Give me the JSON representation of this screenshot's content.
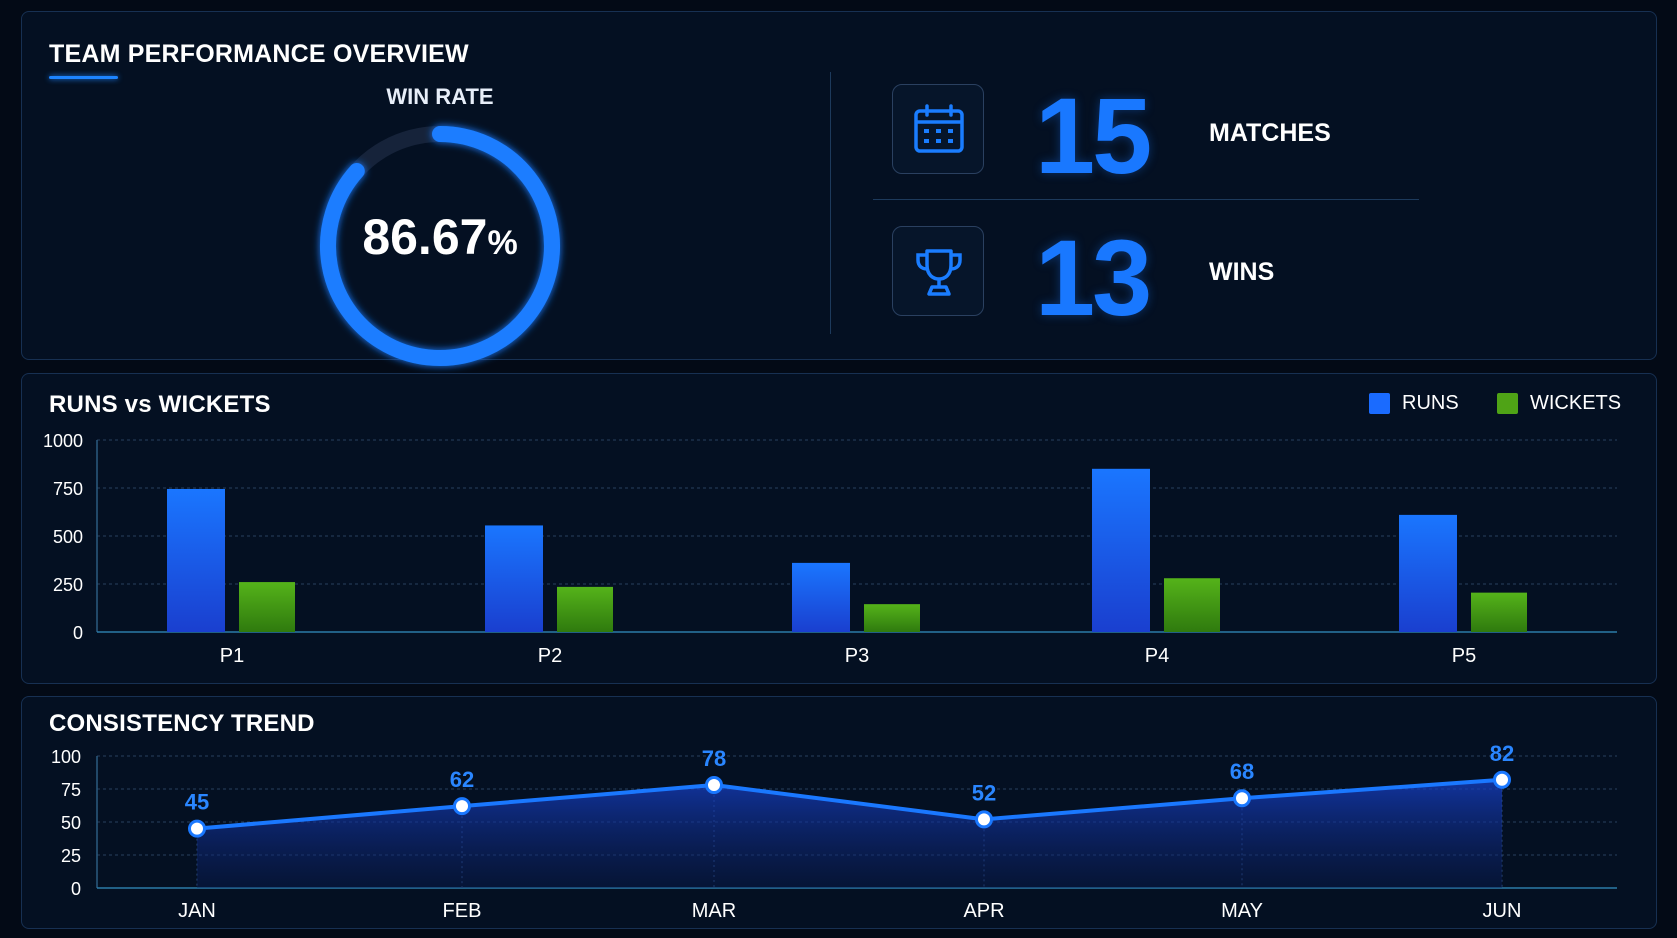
{
  "overview": {
    "title": "TEAM PERFORMANCE OVERVIEW",
    "win_rate_label": "WIN RATE",
    "win_rate_value": "86.67",
    "win_rate_unit": "%",
    "win_rate_fraction": 0.8667,
    "matches_value": "15",
    "matches_label": "MATCHES",
    "wins_value": "13",
    "wins_label": "WINS",
    "icons": {
      "matches": "calendar-icon",
      "wins": "trophy-icon"
    }
  },
  "colors": {
    "accent": "#1d84ff",
    "runs": "#1a6bff",
    "wickets": "#4fa316",
    "background": "#030a16"
  },
  "chart_data": [
    {
      "type": "bar",
      "title": "RUNS vs WICKETS",
      "categories": [
        "P1",
        "P2",
        "P3",
        "P4",
        "P5"
      ],
      "series": [
        {
          "name": "RUNS",
          "values": [
            745,
            555,
            360,
            850,
            610
          ]
        },
        {
          "name": "WICKETS",
          "values": [
            260,
            235,
            145,
            280,
            205
          ]
        }
      ],
      "ylim": [
        0,
        1000
      ],
      "yticks": [
        "0",
        "250",
        "500",
        "750",
        "1000"
      ],
      "legend": "top-right",
      "grid": true
    },
    {
      "type": "area",
      "title": "CONSISTENCY TREND",
      "categories": [
        "JAN",
        "FEB",
        "MAR",
        "APR",
        "MAY",
        "JUN"
      ],
      "series": [
        {
          "values": [
            45,
            62,
            78,
            52,
            68,
            82
          ],
          "labels": [
            "45",
            "62",
            "78",
            "52",
            "68",
            "82"
          ]
        }
      ],
      "ylim": [
        0,
        100
      ],
      "yticks": [
        "0",
        "25",
        "50",
        "75",
        "100"
      ],
      "grid": true
    }
  ]
}
